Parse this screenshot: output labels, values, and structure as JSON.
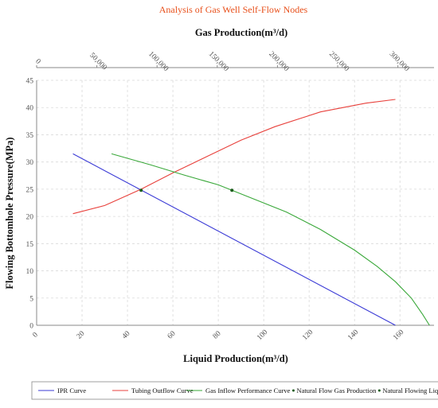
{
  "chart_data": {
    "type": "line",
    "title": "Analysis of Gas Well Self-Flow Nodes",
    "xlabel": "Liquid Production(m³/d)",
    "ylabel": "Flowing Bottomhole Pressure(MPa)",
    "x2label": "Gas Production(m³/d)",
    "xlim": [
      0,
      175
    ],
    "ylim": [
      0,
      45
    ],
    "x2lim": [
      0,
      330000
    ],
    "x_ticks": [
      0,
      20,
      40,
      60,
      80,
      100,
      120,
      140,
      160
    ],
    "y_ticks": [
      0,
      5,
      10,
      15,
      20,
      25,
      30,
      35,
      40,
      45
    ],
    "x2_ticks": [
      0,
      50000,
      100000,
      150000,
      200000,
      250000,
      300000
    ],
    "x2_tick_labels": [
      "0",
      "50,000",
      "100,000",
      "150,000",
      "200,000",
      "250,000",
      "300,000"
    ],
    "grid": true,
    "legend_position": "bottom",
    "series": [
      {
        "name": "IPR Curve",
        "color": "#3b3bd6",
        "x": [
          16,
          158
        ],
        "y": [
          31.5,
          0
        ]
      },
      {
        "name": "Tubing Outflow Curve",
        "color": "#e8413c",
        "x": [
          16,
          30,
          46,
          60,
          75,
          90,
          105,
          125,
          145,
          158
        ],
        "y": [
          20.5,
          22,
          25,
          28,
          31,
          34,
          36.5,
          39.2,
          40.8,
          41.5
        ]
      },
      {
        "name": "Gas Inflow Performance Curve",
        "color": "#3aa83a",
        "x": [
          33,
          50,
          65,
          80,
          95,
          110,
          125,
          140,
          150,
          158,
          165,
          170,
          173
        ],
        "y": [
          31.5,
          29.5,
          27.6,
          25.8,
          23.3,
          20.8,
          17.6,
          13.8,
          10.8,
          8,
          5,
          2,
          0
        ]
      }
    ],
    "markers": [
      {
        "name": "Natural Flow Gas Production",
        "x": 86,
        "y": 24.8,
        "color": "#1a5c1a"
      },
      {
        "name": "Natural Flowing Liquid Production",
        "x": 46,
        "y": 24.8,
        "color": "#1a5c1a"
      }
    ],
    "legend_entries": [
      {
        "label": "IPR Curve",
        "color": "#3b3bd6",
        "kind": "line"
      },
      {
        "label": "Tubing Outflow Curve",
        "color": "#e8413c",
        "kind": "line"
      },
      {
        "label": "Gas Inflow Performance Curve",
        "color": "#3aa83a",
        "kind": "line"
      },
      {
        "label": "Natural Flow Gas Production",
        "color": "#1a5c1a",
        "kind": "dot"
      },
      {
        "label": "Natural Flowing Liquid Production",
        "color": "#1a5c1a",
        "kind": "dot"
      }
    ]
  }
}
